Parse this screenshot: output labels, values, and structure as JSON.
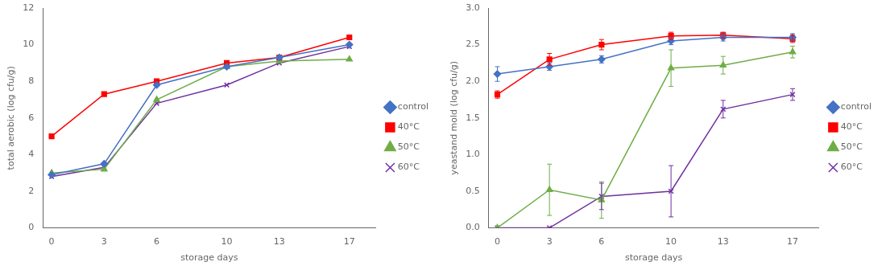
{
  "chart_data": [
    {
      "type": "line",
      "xlabel": "storage days",
      "ylabel": "total aerobic (log cfu/g)",
      "x": [
        0,
        3,
        6,
        10,
        13,
        17
      ],
      "xlim": [
        -0.5,
        18.5
      ],
      "xticks": [
        0,
        3,
        6,
        10,
        13,
        17
      ],
      "ylim": [
        0,
        12
      ],
      "yticks": [
        0,
        2,
        4,
        6,
        8,
        10,
        12
      ],
      "grid": false,
      "legend": "right",
      "series": [
        {
          "name": "control",
          "color": "#4472C4",
          "marker": "diamond",
          "values": [
            2.9,
            3.5,
            7.8,
            8.8,
            9.3,
            10.0
          ]
        },
        {
          "name": "40°C",
          "color": "#FF0000",
          "marker": "square",
          "values": [
            5.0,
            7.3,
            8.0,
            9.0,
            9.3,
            10.4
          ]
        },
        {
          "name": "50°C",
          "color": "#70AD47",
          "marker": "triangle",
          "values": [
            3.0,
            3.2,
            7.0,
            8.8,
            9.1,
            9.2
          ]
        },
        {
          "name": "60°C",
          "color": "#7030A0",
          "marker": "x",
          "values": [
            2.8,
            3.3,
            6.8,
            7.8,
            9.0,
            9.9
          ]
        }
      ]
    },
    {
      "type": "line",
      "xlabel": "storage days",
      "ylabel": "yeastand mold (log cfu/g)",
      "x": [
        0,
        3,
        6,
        10,
        13,
        17
      ],
      "xlim": [
        -0.5,
        18.5
      ],
      "xticks": [
        0,
        3,
        6,
        10,
        13,
        17
      ],
      "ylim": [
        0.0,
        3.0
      ],
      "yticks": [
        {
          "value": 0,
          "label": "0.0"
        },
        0.5,
        {
          "value": 1,
          "label": "1.0"
        },
        1.5,
        {
          "value": 2,
          "label": "2.0"
        },
        2.5,
        {
          "value": 3,
          "label": "3.0"
        }
      ],
      "grid": false,
      "legend": "right",
      "series": [
        {
          "name": "control",
          "color": "#4472C4",
          "marker": "diamond",
          "values": [
            2.1,
            2.2,
            2.3,
            2.55,
            2.6,
            2.6
          ],
          "yerr": [
            0.1,
            0.05,
            0.05,
            0.05,
            0.05,
            0.05
          ]
        },
        {
          "name": "40°C",
          "color": "#FF0000",
          "marker": "square",
          "values": [
            1.82,
            2.3,
            2.5,
            2.62,
            2.63,
            2.58
          ],
          "yerr": [
            0.05,
            0.08,
            0.07,
            0.05,
            0.04,
            0.05
          ]
        },
        {
          "name": "50°C",
          "color": "#70AD47",
          "marker": "triangle",
          "values": [
            0.0,
            0.52,
            0.38,
            2.18,
            2.22,
            2.4
          ],
          "yerr": [
            0.0,
            0.35,
            0.25,
            0.25,
            0.12,
            0.08
          ]
        },
        {
          "name": "60°C",
          "color": "#7030A0",
          "marker": "x",
          "values": [
            0.0,
            0.0,
            0.43,
            0.5,
            1.62,
            1.82
          ],
          "yerr": [
            0.0,
            0.0,
            0.18,
            0.35,
            0.12,
            0.08
          ]
        }
      ]
    }
  ]
}
